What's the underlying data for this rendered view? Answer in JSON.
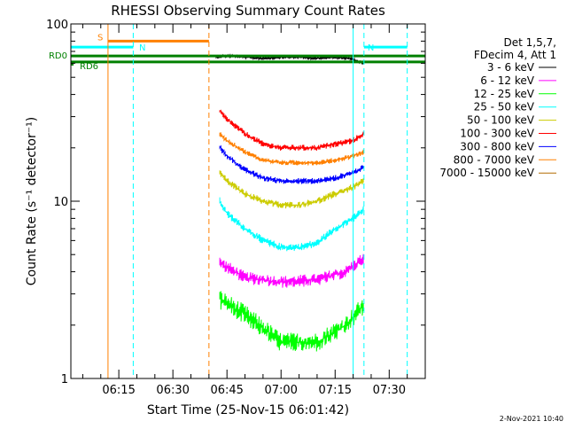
{
  "chart_data": {
    "type": "line",
    "title": "RHESSI Observing Summary Count Rates",
    "xlabel": "Start Time (25-Nov-15 06:01:42)",
    "ylabel": "Count Rate (s⁻¹ detector⁻¹)",
    "y_scale": "log",
    "ylim": [
      1,
      100
    ],
    "xlim": [
      "06:01:42",
      "07:40:00"
    ],
    "x_ticks": [
      "06:15",
      "06:30",
      "06:45",
      "07:00",
      "07:15",
      "07:30"
    ],
    "y_ticks": [
      "1",
      "10",
      "100"
    ],
    "legend_header": [
      "Det 1,5,7,",
      "FDecim 4, Att 1"
    ],
    "legend_position": "right",
    "footer": "2-Nov-2021 10:40",
    "series": [
      {
        "name": "3 - 6 keV",
        "color": "#000000",
        "x": [
          "06:42",
          "06:45",
          "06:50",
          "06:55",
          "07:00",
          "07:05",
          "07:10",
          "07:15",
          "07:19",
          "07:23"
        ],
        "y": [
          65,
          66,
          65,
          64,
          65,
          65,
          64,
          65,
          64,
          60
        ]
      },
      {
        "name": "6 - 12 keV",
        "color": "#ff00ff",
        "x": [
          "06:43",
          "06:50",
          "07:00",
          "07:10",
          "07:18",
          "07:23"
        ],
        "y": [
          4.5,
          3.7,
          3.5,
          3.6,
          4.0,
          4.8
        ]
      },
      {
        "name": "12 - 25 keV",
        "color": "#00ff00",
        "x": [
          "06:43",
          "06:50",
          "07:00",
          "07:10",
          "07:18",
          "07:23"
        ],
        "y": [
          2.8,
          2.3,
          1.6,
          1.6,
          2.0,
          2.6
        ]
      },
      {
        "name": "25 - 50 keV",
        "color": "#00ffff",
        "x": [
          "06:43",
          "06:45",
          "06:50",
          "06:55",
          "07:00",
          "07:05",
          "07:10",
          "07:15",
          "07:20",
          "07:23"
        ],
        "y": [
          10,
          8.5,
          7.0,
          6.0,
          5.5,
          5.5,
          5.8,
          7.0,
          8.0,
          9.0
        ]
      },
      {
        "name": "50 - 100 keV",
        "color": "#cccc00",
        "x": [
          "06:43",
          "06:45",
          "06:50",
          "06:55",
          "07:00",
          "07:05",
          "07:10",
          "07:15",
          "07:20",
          "07:23"
        ],
        "y": [
          14.5,
          13,
          11,
          10,
          9.5,
          9.5,
          10,
          11,
          12,
          13
        ]
      },
      {
        "name": "100 - 300 keV",
        "color": "#ff0000",
        "x": [
          "06:43",
          "06:45",
          "06:50",
          "06:55",
          "07:00",
          "07:05",
          "07:10",
          "07:15",
          "07:20",
          "07:23"
        ],
        "y": [
          32,
          29,
          24,
          21,
          20,
          20,
          20,
          21,
          22,
          24
        ]
      },
      {
        "name": "300 - 800 keV",
        "color": "#0000ff",
        "x": [
          "06:43",
          "06:45",
          "06:50",
          "06:55",
          "07:00",
          "07:05",
          "07:10",
          "07:15",
          "07:20",
          "07:23"
        ],
        "y": [
          20,
          18,
          15,
          13.5,
          13,
          13,
          13,
          13.5,
          14.5,
          15.5
        ]
      },
      {
        "name": "800 - 7000 keV",
        "color": "#ff8000",
        "x": [
          "06:43",
          "06:45",
          "06:50",
          "06:55",
          "07:00",
          "07:05",
          "07:10",
          "07:15",
          "07:20",
          "07:23"
        ],
        "y": [
          24,
          22,
          19,
          17,
          16.5,
          16.5,
          16.5,
          17,
          18,
          19
        ]
      },
      {
        "name": "7000 - 15000 keV",
        "color": "#b36b00",
        "x": [],
        "y": []
      }
    ],
    "flags": [
      {
        "label": "S",
        "color": "#ff8000",
        "x": [
          "06:12",
          "06:40"
        ],
        "y": 80
      },
      {
        "label": "N",
        "color": "#00ffff",
        "x": [
          "06:01:42",
          "06:19"
        ],
        "y": 74
      },
      {
        "label": "N",
        "color": "#00ffff",
        "x": [
          "07:23",
          "07:35"
        ],
        "y": 74
      },
      {
        "label": "RD0",
        "color": "#008000",
        "x": [
          "06:01:42",
          "07:40"
        ],
        "y": 66
      },
      {
        "label": "RD6",
        "color": "#008000",
        "x": [
          "06:01:42",
          "07:40"
        ],
        "y": 61
      }
    ],
    "markers": [
      {
        "time": "06:12",
        "color": "#ff8000",
        "style": "solid"
      },
      {
        "time": "06:19",
        "color": "#00ffff",
        "style": "dashed"
      },
      {
        "time": "06:40",
        "color": "#ff8000",
        "style": "dashed"
      },
      {
        "time": "07:20",
        "color": "#00ffff",
        "style": "solid"
      },
      {
        "time": "07:23",
        "color": "#00ffff",
        "style": "dashed"
      },
      {
        "time": "07:35",
        "color": "#00ffff",
        "style": "dashed"
      }
    ]
  }
}
